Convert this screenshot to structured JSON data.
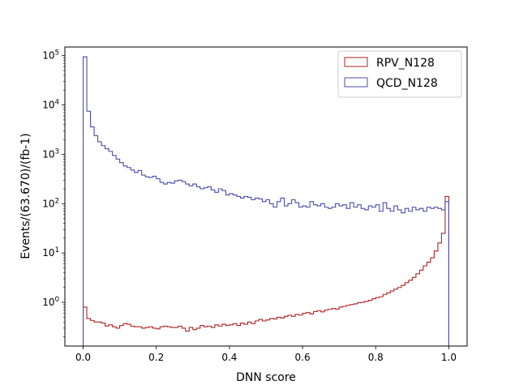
{
  "chart_data": {
    "type": "step-histogram",
    "xlabel": "DNN score",
    "ylabel": "Events/(63.670)/(fb-1)",
    "xlim": [
      -0.05,
      1.05
    ],
    "ylim": [
      0.13,
      150000
    ],
    "yscale": "log",
    "grid": false,
    "legend_position": "top-right",
    "x_ticks": [
      {
        "value": 0.0,
        "label": "0.0"
      },
      {
        "value": 0.2,
        "label": "0.2"
      },
      {
        "value": 0.4,
        "label": "0.4"
      },
      {
        "value": 0.6,
        "label": "0.6"
      },
      {
        "value": 0.8,
        "label": "0.8"
      },
      {
        "value": 1.0,
        "label": "1.0"
      }
    ],
    "y_ticks": [
      {
        "value": 1,
        "base": "10",
        "exp": "0"
      },
      {
        "value": 10,
        "base": "10",
        "exp": "1"
      },
      {
        "value": 100,
        "base": "10",
        "exp": "2"
      },
      {
        "value": 1000,
        "base": "10",
        "exp": "3"
      },
      {
        "value": 10000,
        "base": "10",
        "exp": "4"
      },
      {
        "value": 100000,
        "base": "10",
        "exp": "5"
      }
    ],
    "bin_edges": {
      "start": 0.0,
      "stop": 1.0,
      "count": 100
    },
    "series": [
      {
        "name": "RPV_N128",
        "color": "#b22222",
        "values": [
          0.8,
          0.47,
          0.43,
          0.4,
          0.4,
          0.38,
          0.33,
          0.35,
          0.32,
          0.3,
          0.34,
          0.37,
          0.36,
          0.33,
          0.32,
          0.32,
          0.3,
          0.31,
          0.32,
          0.3,
          0.29,
          0.32,
          0.33,
          0.32,
          0.31,
          0.31,
          0.33,
          0.3,
          0.26,
          0.31,
          0.28,
          0.3,
          0.34,
          0.32,
          0.33,
          0.31,
          0.35,
          0.33,
          0.36,
          0.34,
          0.35,
          0.37,
          0.34,
          0.38,
          0.36,
          0.4,
          0.37,
          0.42,
          0.45,
          0.42,
          0.44,
          0.47,
          0.46,
          0.5,
          0.48,
          0.52,
          0.55,
          0.52,
          0.57,
          0.55,
          0.6,
          0.62,
          0.58,
          0.65,
          0.68,
          0.64,
          0.7,
          0.72,
          0.75,
          0.73,
          0.8,
          0.83,
          0.87,
          0.9,
          0.93,
          0.98,
          1.0,
          1.05,
          1.1,
          1.18,
          1.25,
          1.3,
          1.45,
          1.55,
          1.7,
          1.85,
          2.0,
          2.2,
          2.5,
          2.8,
          3.2,
          3.8,
          4.5,
          5.5,
          6.5,
          8.0,
          11.0,
          16.0,
          25.0,
          140.0
        ]
      },
      {
        "name": "QCD_N128",
        "color": "#4b4bab",
        "values": [
          95000,
          7500,
          3600,
          2400,
          1800,
          1500,
          1300,
          1150,
          950,
          800,
          680,
          580,
          540,
          480,
          430,
          470,
          380,
          350,
          340,
          360,
          320,
          270,
          250,
          270,
          260,
          290,
          300,
          280,
          250,
          230,
          250,
          220,
          200,
          210,
          220,
          190,
          170,
          200,
          185,
          150,
          160,
          150,
          140,
          130,
          140,
          135,
          120,
          130,
          125,
          110,
          120,
          100,
          85,
          110,
          130,
          90,
          100,
          120,
          105,
          85,
          90,
          85,
          110,
          95,
          90,
          100,
          85,
          80,
          85,
          100,
          90,
          95,
          80,
          105,
          85,
          95,
          80,
          75,
          90,
          85,
          95,
          70,
          105,
          80,
          70,
          90,
          75,
          65,
          80,
          70,
          85,
          75,
          80,
          70,
          85,
          80,
          85,
          80,
          75,
          110
        ]
      }
    ]
  }
}
